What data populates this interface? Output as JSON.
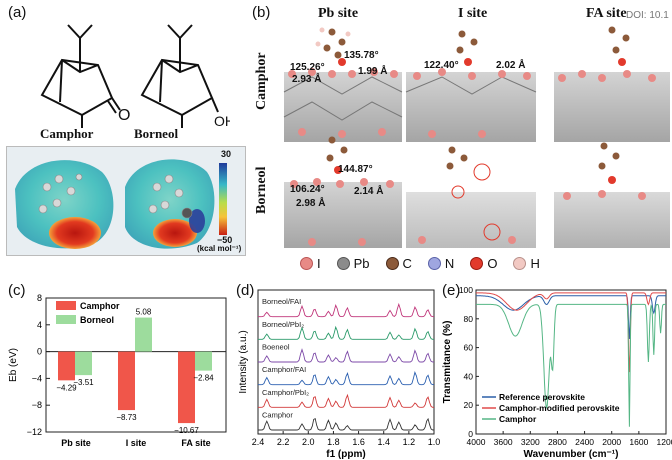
{
  "doi": "DOI: 10.1",
  "panel_a": {
    "label": "(a)",
    "molecule1": "Camphor",
    "molecule2": "Borneol",
    "molecule2_group": "OH",
    "molecule1_group": "O",
    "colorbar_max": "30",
    "colorbar_min": "−50",
    "colorbar_unit": "(kcal mol⁻¹)",
    "colors": {
      "bg": "#d6e2ea",
      "red": "#d2281d",
      "cyan": "#3cc3c2",
      "blue": "#2b3f9a"
    }
  },
  "panel_b": {
    "label": "(b)",
    "col_headers": [
      "Pb site",
      "I site",
      "FA site"
    ],
    "row_labels": [
      "Camphor",
      "Borneol"
    ],
    "camphor_pb": {
      "a1": "125.26°",
      "a2": "135.78°",
      "d1": "2.93 Å",
      "d2": "1.99 Å"
    },
    "camphor_i": {
      "a1": "122.40°",
      "d1": "2.02 Å"
    },
    "borneol_pb": {
      "a1": "144.87°",
      "a2": "106.24°",
      "d1": "2.98 Å",
      "d2": "2.14 Å"
    },
    "legend": [
      {
        "symbol": "I",
        "color": "#e88a86"
      },
      {
        "symbol": "Pb",
        "color": "#8b8b8b"
      },
      {
        "symbol": "C",
        "color": "#8c5a3a"
      },
      {
        "symbol": "N",
        "color": "#9fa6e0"
      },
      {
        "symbol": "O",
        "color": "#e23a2c"
      },
      {
        "symbol": "H",
        "color": "#f2c9c3"
      }
    ]
  },
  "panel_c": {
    "label": "(c)",
    "chart_data": {
      "type": "bar",
      "categories": [
        "Pb site",
        "I site",
        "FA site"
      ],
      "series": [
        {
          "name": "Camphor",
          "color": "#f0564a",
          "values": [
            -4.29,
            -8.73,
            -10.67
          ]
        },
        {
          "name": "Borneol",
          "color": "#9ddc9d",
          "values": [
            -3.51,
            5.08,
            -2.84
          ]
        }
      ],
      "value_labels": [
        [
          "−4.29",
          "−8.73",
          "−10.67"
        ],
        [
          "−3.51",
          "5.08",
          "−2.84"
        ]
      ],
      "ylabel": "Eb (eV)",
      "ylim": [
        -12,
        8
      ],
      "yticks": [
        "8",
        "4",
        "0",
        "−4",
        "−8",
        "−12"
      ],
      "legend_position": "top-left"
    }
  },
  "panel_d": {
    "label": "(d)",
    "chart_data": {
      "type": "line",
      "xlabel": "f1 (ppm)",
      "ylabel": "Intensity (a.u.)",
      "xlim": [
        2.4,
        1.0
      ],
      "xticks": [
        "2.4",
        "2.2",
        "2.0",
        "1.8",
        "1.6",
        "1.4",
        "1.2",
        "1.0"
      ],
      "series": [
        {
          "name": "Borneol/FAI",
          "color": "#c0357a"
        },
        {
          "name": "Borneol/PbI₂",
          "color": "#2a9a6a"
        },
        {
          "name": "Boeneol",
          "color": "#7d4aa8"
        },
        {
          "name": "Camphor/FAI",
          "color": "#2a5fb0"
        },
        {
          "name": "Camphor/PbI₂",
          "color": "#d23a3a"
        },
        {
          "name": "Camphor",
          "color": "#333333"
        }
      ]
    }
  },
  "panel_e": {
    "label": "(e)",
    "chart_data": {
      "type": "line",
      "xlabel": "Wavenumber (cm⁻¹)",
      "ylabel": "Transmitance (%)",
      "xlim": [
        4000,
        1200
      ],
      "ylim": [
        0,
        100
      ],
      "xticks": [
        "4000",
        "3600",
        "3200",
        "2800",
        "2400",
        "2000",
        "1600",
        "1200"
      ],
      "yticks": [
        "100",
        "80",
        "60",
        "40",
        "20",
        "0"
      ],
      "legend_position": "bottom-left",
      "series": [
        {
          "name": "Reference perovskite",
          "color": "#2b5fa8"
        },
        {
          "name": "Camphor-modified perovskite",
          "color": "#e04a4a"
        },
        {
          "name": "Camphor",
          "color": "#55b685"
        }
      ]
    }
  }
}
